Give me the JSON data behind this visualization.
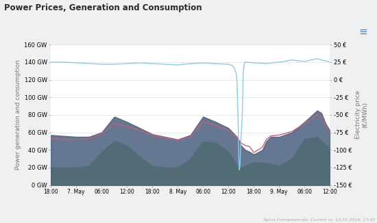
{
  "title": "Power Prices, Generation and Consumption",
  "bg_color": "#eef0f2",
  "plot_bg_color": "#ffffff",
  "left_ylabel": "Power generation and consumption",
  "right_ylabel": "Electricity price\n(€/MWh)",
  "left_ylim": [
    0,
    160
  ],
  "right_ylim": [
    -150,
    50
  ],
  "left_yticks": [
    0,
    20,
    40,
    60,
    80,
    100,
    120,
    140,
    160
  ],
  "left_yticklabels": [
    "0 GW",
    "20 GW",
    "40 GW",
    "60 GW",
    "80 GW",
    "100 GW",
    "120 GW",
    "140 GW",
    "160 GW"
  ],
  "right_yticks": [
    -150,
    -125,
    -100,
    -75,
    -50,
    -25,
    0,
    25,
    50
  ],
  "right_yticklabels": [
    "-150 €",
    "-125 €",
    "-100 €",
    "-75 €",
    "-50 €",
    "-25 €",
    "0 €",
    "25 €",
    "50 €"
  ],
  "xtick_labels": [
    "18:00",
    "7. May",
    "06:00",
    "12:00",
    "18:00",
    "8. May",
    "06:00",
    "12:00",
    "18:00",
    "9. May",
    "06:00",
    "12:00"
  ],
  "conventional_color": "#4a5f7e",
  "regenerative_color": "#7ab648",
  "price_color": "#8ecae6",
  "consumption_color": "#c4607a",
  "watermark": "Agora Energiewende; Current to: 10.05.2016, 17:45",
  "menu_color": "#3a7abf"
}
